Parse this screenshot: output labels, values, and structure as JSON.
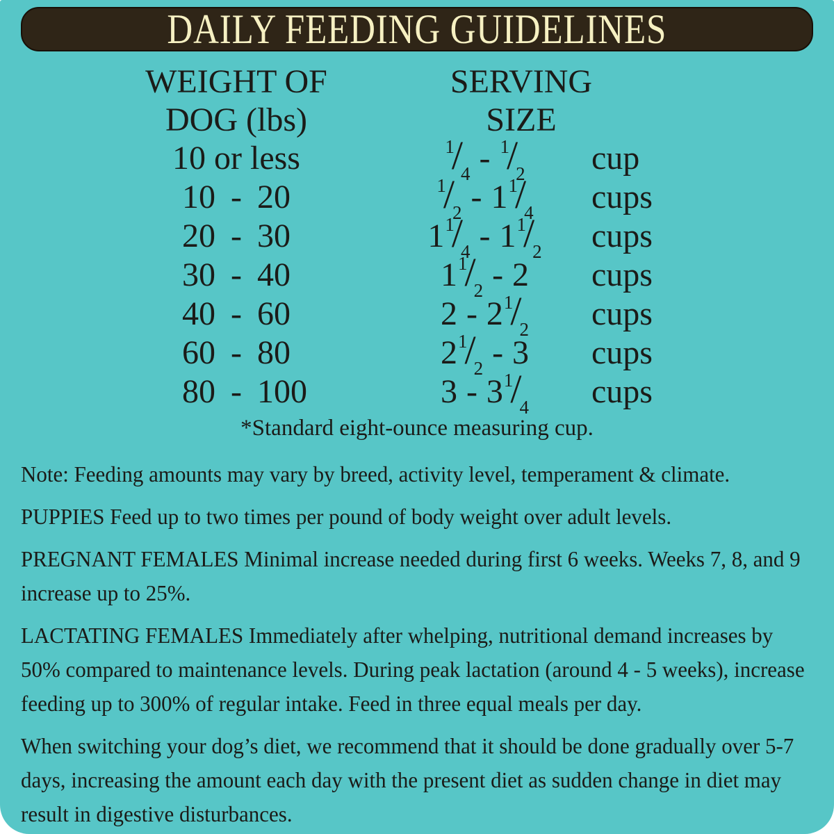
{
  "page": {
    "title": "DAILY FEEDING GUIDELINES",
    "background_color": "#57c6c7",
    "header_bar_color": "#2f2517",
    "title_text_color": "#f6f0c2",
    "body_text_color": "#1b1b18"
  },
  "table": {
    "headers": {
      "weight_line1": "WEIGHT OF",
      "weight_line2": "DOG (lbs)",
      "serving_line1": "SERVING",
      "serving_line2": "SIZE"
    },
    "range_dash": "-",
    "rows": [
      {
        "weight": {
          "text": "10 or less"
        },
        "serving": {
          "min": {
            "num": "1",
            "den": "4"
          },
          "max": {
            "num": "1",
            "den": "2"
          },
          "unit": "cup"
        }
      },
      {
        "weight": {
          "min": "10",
          "max": "20"
        },
        "serving": {
          "min": {
            "num": "1",
            "den": "2"
          },
          "max": {
            "whole": "1",
            "num": "1",
            "den": "4"
          },
          "unit": "cups"
        }
      },
      {
        "weight": {
          "min": "20",
          "max": "30"
        },
        "serving": {
          "min": {
            "whole": "1",
            "num": "1",
            "den": "4"
          },
          "max": {
            "whole": "1",
            "num": "1",
            "den": "2"
          },
          "unit": "cups"
        }
      },
      {
        "weight": {
          "min": "30",
          "max": "40"
        },
        "serving": {
          "min": {
            "whole": "1",
            "num": "1",
            "den": "2"
          },
          "max": {
            "whole": "2"
          },
          "unit": "cups"
        }
      },
      {
        "weight": {
          "min": "40",
          "max": "60"
        },
        "serving": {
          "min": {
            "whole": "2"
          },
          "max": {
            "whole": "2",
            "num": "1",
            "den": "2"
          },
          "unit": "cups"
        }
      },
      {
        "weight": {
          "min": "60",
          "max": "80"
        },
        "serving": {
          "min": {
            "whole": "2",
            "num": "1",
            "den": "2"
          },
          "max": {
            "whole": "3"
          },
          "unit": "cups"
        }
      },
      {
        "weight": {
          "min": "80",
          "max": "100"
        },
        "serving": {
          "min": {
            "whole": "3"
          },
          "max": {
            "whole": "3",
            "num": "1",
            "den": "4"
          },
          "unit": "cups"
        }
      }
    ],
    "footnote": "*Standard eight-ounce measuring cup."
  },
  "paragraphs": [
    "Note: Feeding amounts may vary by breed, activity level, temperament & climate.",
    "PUPPIES Feed up to two times per pound of body weight over adult levels.",
    "PREGNANT FEMALES Minimal increase needed during first 6 weeks. Weeks 7, 8, and 9 increase up to 25%.",
    "LACTATING FEMALES Immediately after whelping, nutritional demand increases by 50% compared to maintenance levels. During peak lactation (around 4 - 5 weeks), increase feeding up to 300% of regular intake. Feed in three equal meals per day.",
    "When switching your dog’s diet, we recommend that it should be done gradually over 5-7 days, increasing the amount each day with the present diet as sudden change in diet may result in digestive disturbances."
  ]
}
